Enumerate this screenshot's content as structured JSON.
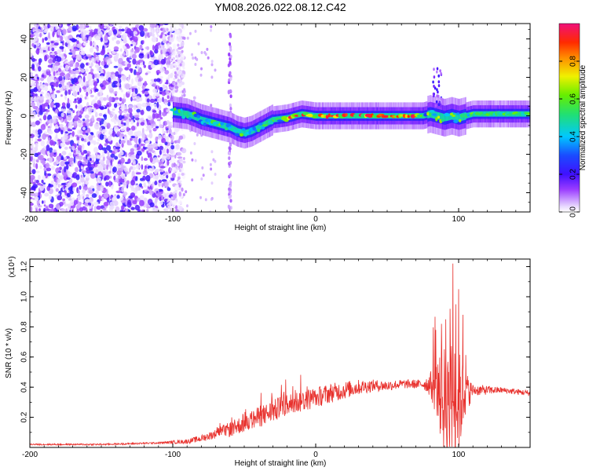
{
  "title": "YM08.2026.022.08.12.C42",
  "chart_data": [
    {
      "type": "heatmap",
      "name": "spectrogram",
      "xlabel": "Height of straight line (km)",
      "ylabel": "Frequency (Hz)",
      "xlim": [
        -200,
        150
      ],
      "ylim": [
        -50,
        48
      ],
      "xticks": [
        -200,
        -100,
        0,
        100
      ],
      "yticks": [
        -40,
        -20,
        0,
        20,
        40
      ],
      "colorbar": {
        "label": "Normalized spectral amplitude",
        "range": [
          0,
          1
        ],
        "ticks": [
          "0.0",
          "0.2",
          "0.4",
          "0.6",
          "0.8"
        ],
        "tick_values": [
          0,
          0.2,
          0.4,
          0.6,
          0.8
        ],
        "colormap": "rainbow (white-violet-blue-cyan-green-yellow-red-magenta)"
      },
      "ridge_center_hz": [
        [
          -100,
          2
        ],
        [
          -90,
          1
        ],
        [
          -80,
          -2
        ],
        [
          -70,
          -4
        ],
        [
          -60,
          -6
        ],
        [
          -55,
          -8
        ],
        [
          -50,
          -9
        ],
        [
          -45,
          -8
        ],
        [
          -40,
          -6
        ],
        [
          -35,
          -4
        ],
        [
          -30,
          -2
        ],
        [
          -20,
          -1
        ],
        [
          -10,
          1
        ],
        [
          0,
          0
        ],
        [
          20,
          0
        ],
        [
          40,
          0
        ],
        [
          60,
          0
        ],
        [
          75,
          0
        ],
        [
          80,
          1
        ],
        [
          85,
          0
        ],
        [
          90,
          -1
        ],
        [
          95,
          0
        ],
        [
          100,
          -1
        ],
        [
          110,
          1
        ],
        [
          130,
          1
        ],
        [
          150,
          1
        ]
      ],
      "noise_region_km": [
        -200,
        -100
      ],
      "vertical_artifact_km": -60
    },
    {
      "type": "line",
      "name": "snr",
      "xlabel": "Height of straight line (km)",
      "ylabel": "SNR (10 * v/v)",
      "y_multiplier": "(x10⁴)",
      "xlim": [
        -200,
        150
      ],
      "ylim": [
        0,
        1.25
      ],
      "xticks": [
        -200,
        -100,
        0,
        100
      ],
      "yticks": [
        0.2,
        0.4,
        0.6,
        0.8,
        1.0,
        1.2
      ],
      "color": "#e8302c",
      "envelope": [
        [
          -200,
          0.02
        ],
        [
          -150,
          0.02
        ],
        [
          -110,
          0.03
        ],
        [
          -90,
          0.04
        ],
        [
          -80,
          0.06
        ],
        [
          -70,
          0.09
        ],
        [
          -60,
          0.12
        ],
        [
          -50,
          0.16
        ],
        [
          -40,
          0.2
        ],
        [
          -30,
          0.24
        ],
        [
          -20,
          0.28
        ],
        [
          -10,
          0.31
        ],
        [
          0,
          0.33
        ],
        [
          10,
          0.36
        ],
        [
          20,
          0.38
        ],
        [
          30,
          0.4
        ],
        [
          40,
          0.41
        ],
        [
          50,
          0.41
        ],
        [
          60,
          0.42
        ],
        [
          70,
          0.42
        ],
        [
          80,
          0.42
        ],
        [
          85,
          0.38
        ],
        [
          90,
          0.3
        ],
        [
          95,
          0.28
        ],
        [
          100,
          0.3
        ],
        [
          105,
          0.36
        ],
        [
          110,
          0.38
        ],
        [
          120,
          0.38
        ],
        [
          130,
          0.38
        ],
        [
          150,
          0.36
        ]
      ],
      "noise_amplitude": [
        [
          -200,
          0.005
        ],
        [
          -110,
          0.006
        ],
        [
          -90,
          0.015
        ],
        [
          -70,
          0.03
        ],
        [
          -60,
          0.05
        ],
        [
          -40,
          0.07
        ],
        [
          -20,
          0.08
        ],
        [
          0,
          0.07
        ],
        [
          20,
          0.06
        ],
        [
          40,
          0.04
        ],
        [
          60,
          0.03
        ],
        [
          75,
          0.03
        ],
        [
          80,
          0.08
        ],
        [
          85,
          0.2
        ],
        [
          90,
          0.38
        ],
        [
          95,
          0.45
        ],
        [
          100,
          0.35
        ],
        [
          105,
          0.15
        ],
        [
          110,
          0.04
        ],
        [
          130,
          0.02
        ],
        [
          150,
          0.02
        ]
      ],
      "peaks": [
        [
          84,
          0.78
        ],
        [
          88,
          0.82
        ],
        [
          91,
          0.85
        ],
        [
          94,
          0.92
        ],
        [
          96,
          1.22
        ],
        [
          98,
          0.95
        ],
        [
          100,
          1.05
        ],
        [
          103,
          0.88
        ],
        [
          -60,
          0.16
        ],
        [
          -50,
          0.18
        ]
      ]
    }
  ]
}
